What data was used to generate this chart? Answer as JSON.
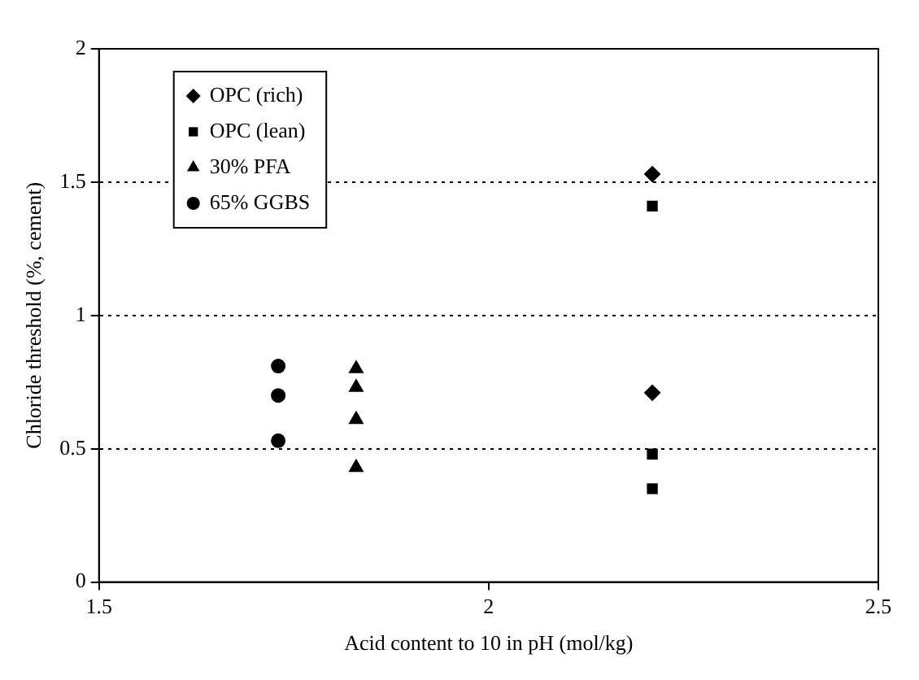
{
  "chart_data": {
    "type": "scatter",
    "xlabel": "Acid content to 10 in pH (mol/kg)",
    "ylabel": "Chloride threshold (%, cement)",
    "xlim": [
      1.5,
      2.5
    ],
    "xticks": [
      1.5,
      2,
      2.5
    ],
    "ylim": [
      0,
      2
    ],
    "yticks": [
      0,
      0.5,
      1,
      1.5,
      2
    ],
    "grid": "y",
    "line_style": "dotted",
    "legend": "top left",
    "series": [
      {
        "name": "OPC (rich)",
        "color": "#000000",
        "marker": "diamond",
        "x": [
          2.21,
          2.21
        ],
        "values": [
          1.53,
          0.71
        ]
      },
      {
        "name": "OPC (lean)",
        "color": "#000000",
        "marker": "square",
        "x": [
          2.21,
          2.21,
          2.21
        ],
        "values": [
          1.41,
          0.48,
          0.35
        ]
      },
      {
        "name": "30% PFA",
        "color": "#000000",
        "marker": "triangle",
        "x": [
          1.83,
          1.83,
          1.83,
          1.83
        ],
        "values": [
          0.8,
          0.73,
          0.61,
          0.43
        ]
      },
      {
        "name": "65% GGBS",
        "color": "#000000",
        "marker": "circle",
        "x": [
          1.73,
          1.73,
          1.73
        ],
        "values": [
          0.81,
          0.7,
          0.53
        ]
      }
    ]
  }
}
